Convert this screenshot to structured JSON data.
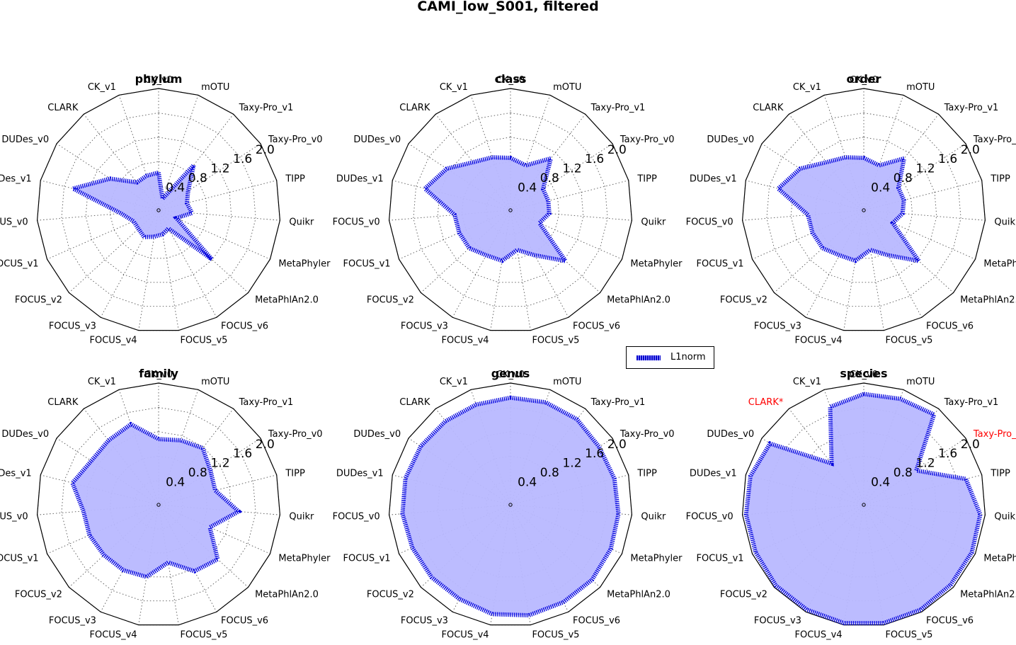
{
  "title": "CAMI_low_S001, filtered",
  "legend": {
    "label": "L1norm",
    "color": "#0000dd",
    "fill": "#b8b8ff"
  },
  "chart_data": {
    "type": "radar",
    "rmax": 2.0,
    "rgrid": [
      0.4,
      0.8,
      1.2,
      1.6,
      2.0
    ],
    "rgrid_labels": [
      "0.4",
      "0.8",
      "1.2",
      "1.6",
      "2.0"
    ],
    "axes": [
      "CK_v0",
      "mOTU",
      "Taxy-Pro_v1",
      "Taxy-Pro_v0",
      "TIPP",
      "Quikr",
      "MetaPhyler",
      "MetaPhlAn2.0",
      "FOCUS_v6",
      "FOCUS_v5",
      "FOCUS_v4",
      "FOCUS_v3",
      "FOCUS_v2",
      "FOCUS_v1",
      "FOCUS_v0",
      "DUDes_v1",
      "DUDes_v0",
      "CLARK",
      "CK_v1"
    ],
    "series_name": "L1norm",
    "panels": [
      {
        "title": "phylum",
        "values": [
          0.62,
          0.2,
          0.94,
          0.58,
          0.48,
          0.55,
          0.32,
          1.19,
          0.34,
          0.4,
          0.44,
          0.5,
          0.45,
          0.45,
          0.62,
          1.45,
          0.95,
          0.58,
          0.6
        ],
        "highlight": []
      },
      {
        "title": "class",
        "values": [
          0.86,
          0.78,
          1.08,
          0.64,
          0.64,
          0.64,
          0.52,
          1.23,
          0.84,
          0.66,
          0.84,
          0.84,
          0.92,
          0.92,
          0.92,
          1.45,
          1.25,
          1.0,
          0.92
        ],
        "highlight": []
      },
      {
        "title": "order",
        "values": [
          0.86,
          0.78,
          1.08,
          0.68,
          0.68,
          0.64,
          0.52,
          1.23,
          0.84,
          0.66,
          0.84,
          0.84,
          0.92,
          0.92,
          0.92,
          1.45,
          1.25,
          1.0,
          0.92
        ],
        "highlight": []
      },
      {
        "title": "family",
        "values": [
          1.08,
          1.12,
          1.18,
          1.02,
          0.96,
          1.32,
          0.92,
          1.32,
          1.24,
          0.96,
          1.2,
          1.22,
          1.22,
          1.24,
          1.24,
          1.46,
          1.32,
          1.34,
          1.4
        ],
        "highlight": []
      },
      {
        "title": "genus",
        "values": [
          1.76,
          1.78,
          1.78,
          1.74,
          1.76,
          1.78,
          1.8,
          1.82,
          1.82,
          1.84,
          1.82,
          1.76,
          1.76,
          1.76,
          1.78,
          1.78,
          1.76,
          1.74,
          1.74
        ],
        "highlight": []
      },
      {
        "title": "species",
        "values": [
          1.82,
          1.84,
          1.88,
          1.03,
          1.73,
          1.92,
          1.94,
          1.94,
          1.96,
          1.97,
          1.97,
          1.96,
          1.96,
          1.94,
          1.94,
          1.92,
          1.84,
          0.86,
          1.7
        ],
        "highlight": [
          "CLARK",
          "Taxy-Pro_v0"
        ]
      }
    ]
  }
}
